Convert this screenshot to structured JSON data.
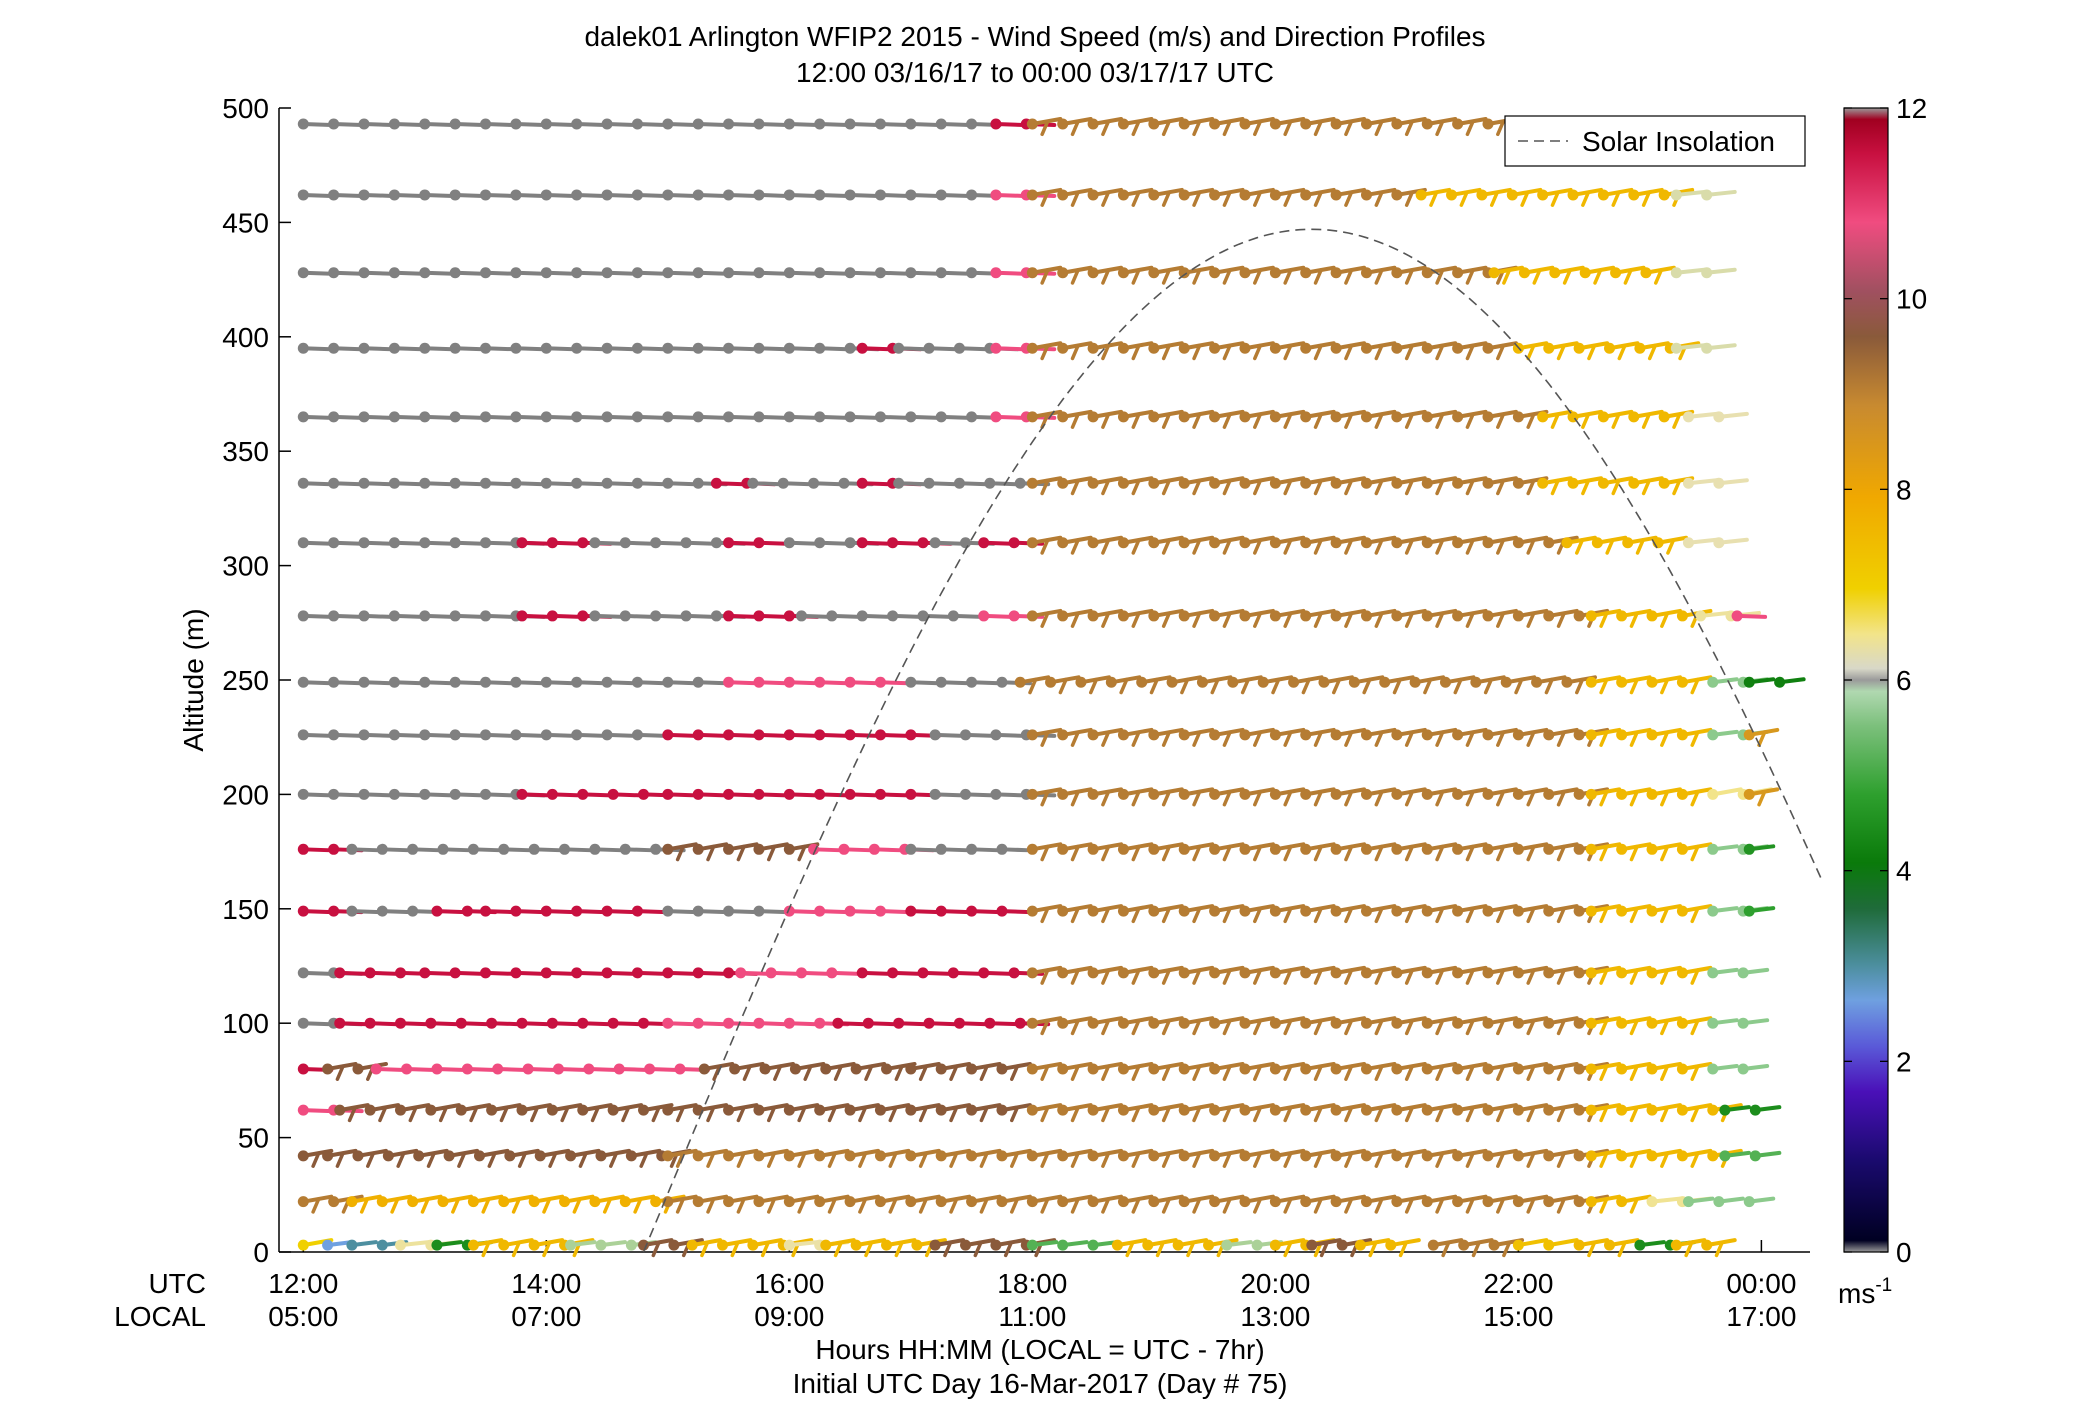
{
  "chart_data": {
    "type": "wind-barb-profile",
    "title": "dalek01 Arlington WFIP2 2015 - Wind Speed (m/s) and Direction Profiles",
    "subtitle": "12:00 03/16/17 to 00:00 03/17/17  UTC",
    "ylabel": "Altitude (m)",
    "ylim": [
      0,
      500
    ],
    "y_ticks": [
      "0",
      "50",
      "100",
      "150",
      "200",
      "250",
      "300",
      "350",
      "400",
      "450",
      "500"
    ],
    "x_range_hours": [
      11.8,
      24.4
    ],
    "x_ticks_utc": [
      "12:00",
      "14:00",
      "16:00",
      "18:00",
      "20:00",
      "22:00",
      "00:00"
    ],
    "x_ticks_local": [
      "05:00",
      "07:00",
      "09:00",
      "11:00",
      "13:00",
      "15:00",
      "17:00"
    ],
    "x_row_label_utc": "UTC",
    "x_row_label_local": "LOCAL",
    "xlabel": "Hours HH:MM  (LOCAL = UTC - 7hr)",
    "xlabel2": "Initial UTC Day 16-Mar-2017 (Day # 75)",
    "legend": {
      "label": "Solar Insolation",
      "placement": "top-right"
    },
    "colorbar": {
      "range": [
        0,
        12
      ],
      "ticks": [
        "0",
        "2",
        "4",
        "6",
        "8",
        "10",
        "12"
      ],
      "unit_label": "ms",
      "unit_exp": "-1"
    },
    "altitudes": [
      3,
      22,
      42,
      62,
      80,
      100,
      122,
      149,
      176,
      200,
      226,
      249,
      278,
      310,
      336,
      365,
      395,
      428,
      462,
      493
    ],
    "segments": [
      {
        "alt": 493,
        "spans": [
          [
            12.0,
            17.7,
            12.3
          ],
          [
            17.7,
            18.0,
            11.2
          ],
          [
            18.0,
            21.8,
            8.9
          ]
        ]
      },
      {
        "alt": 462,
        "spans": [
          [
            12.0,
            17.7,
            12.3
          ],
          [
            17.7,
            18.0,
            10.8
          ],
          [
            18.0,
            21.2,
            8.9
          ],
          [
            21.2,
            23.3,
            7.6
          ],
          [
            23.3,
            23.8,
            6.1
          ]
        ]
      },
      {
        "alt": 428,
        "spans": [
          [
            12.0,
            17.7,
            12.3
          ],
          [
            17.7,
            18.0,
            10.8
          ],
          [
            18.0,
            21.8,
            8.9
          ],
          [
            21.8,
            23.3,
            7.6
          ],
          [
            23.3,
            23.8,
            6.1
          ]
        ]
      },
      {
        "alt": 395,
        "spans": [
          [
            12.0,
            16.6,
            12.3
          ],
          [
            16.6,
            16.9,
            11.2
          ],
          [
            16.9,
            17.7,
            12.3
          ],
          [
            17.7,
            18.0,
            10.8
          ],
          [
            18.0,
            22.0,
            8.9
          ],
          [
            22.0,
            23.3,
            7.6
          ],
          [
            23.3,
            23.8,
            6.1
          ]
        ]
      },
      {
        "alt": 365,
        "spans": [
          [
            12.0,
            17.7,
            12.3
          ],
          [
            17.7,
            18.0,
            10.8
          ],
          [
            18.0,
            22.2,
            8.9
          ],
          [
            22.2,
            23.4,
            7.6
          ],
          [
            23.4,
            23.8,
            6.2
          ]
        ]
      },
      {
        "alt": 336,
        "spans": [
          [
            12.0,
            15.4,
            12.3
          ],
          [
            15.4,
            15.7,
            11.2
          ],
          [
            15.7,
            16.6,
            12.3
          ],
          [
            16.6,
            16.9,
            11.2
          ],
          [
            16.9,
            18.0,
            12.3
          ],
          [
            18.0,
            22.2,
            8.9
          ],
          [
            22.2,
            23.4,
            7.6
          ],
          [
            23.4,
            23.8,
            6.2
          ]
        ]
      },
      {
        "alt": 310,
        "spans": [
          [
            12.0,
            13.8,
            12.3
          ],
          [
            13.8,
            14.4,
            11.2
          ],
          [
            14.4,
            15.5,
            12.3
          ],
          [
            15.5,
            16.0,
            11.2
          ],
          [
            16.0,
            16.6,
            12.3
          ],
          [
            16.6,
            17.2,
            11.2
          ],
          [
            17.2,
            17.6,
            12.3
          ],
          [
            17.6,
            18.0,
            11.2
          ],
          [
            18.0,
            22.4,
            8.9
          ],
          [
            22.4,
            23.4,
            7.6
          ],
          [
            23.4,
            23.8,
            6.2
          ]
        ]
      },
      {
        "alt": 278,
        "spans": [
          [
            12.0,
            13.8,
            12.3
          ],
          [
            13.8,
            14.4,
            11.2
          ],
          [
            14.4,
            15.5,
            12.3
          ],
          [
            15.5,
            16.1,
            11.2
          ],
          [
            16.1,
            17.6,
            12.3
          ],
          [
            17.6,
            18.0,
            10.8
          ],
          [
            18.0,
            22.6,
            8.9
          ],
          [
            22.6,
            23.5,
            7.6
          ],
          [
            23.5,
            23.8,
            6.4
          ],
          [
            23.8,
            24.0,
            10.8
          ]
        ]
      },
      {
        "alt": 249,
        "spans": [
          [
            12.0,
            15.5,
            12.3
          ],
          [
            15.5,
            17.0,
            10.8
          ],
          [
            17.0,
            17.9,
            12.3
          ],
          [
            17.9,
            22.6,
            8.9
          ],
          [
            22.6,
            23.6,
            7.6
          ],
          [
            23.6,
            23.9,
            5.6
          ],
          [
            23.9,
            24.3,
            3.6
          ]
        ]
      },
      {
        "alt": 226,
        "spans": [
          [
            12.0,
            15.0,
            12.3
          ],
          [
            15.0,
            17.2,
            11.2
          ],
          [
            17.2,
            18.0,
            12.3
          ],
          [
            18.0,
            22.6,
            8.9
          ],
          [
            22.6,
            23.6,
            7.6
          ],
          [
            23.6,
            23.9,
            5.6
          ],
          [
            23.9,
            24.0,
            8.3
          ]
        ]
      },
      {
        "alt": 200,
        "spans": [
          [
            12.0,
            13.8,
            12.3
          ],
          [
            13.8,
            15.0,
            11.2
          ],
          [
            15.0,
            16.0,
            11.2
          ],
          [
            16.0,
            17.2,
            11.2
          ],
          [
            17.2,
            18.0,
            12.3
          ],
          [
            18.0,
            22.6,
            8.9
          ],
          [
            22.6,
            23.6,
            7.6
          ],
          [
            23.6,
            23.9,
            6.6
          ],
          [
            23.9,
            24.0,
            8.3
          ]
        ]
      },
      {
        "alt": 176,
        "spans": [
          [
            12.0,
            12.4,
            11.2
          ],
          [
            12.4,
            15.0,
            12.3
          ],
          [
            15.0,
            16.2,
            9.6
          ],
          [
            16.2,
            17.0,
            10.8
          ],
          [
            17.0,
            18.0,
            12.3
          ],
          [
            18.0,
            22.6,
            8.9
          ],
          [
            22.6,
            23.6,
            7.6
          ],
          [
            23.6,
            23.9,
            5.6
          ],
          [
            23.9,
            24.0,
            4.2
          ]
        ]
      },
      {
        "alt": 149,
        "spans": [
          [
            12.0,
            12.4,
            11.2
          ],
          [
            12.4,
            13.1,
            12.3
          ],
          [
            13.1,
            13.5,
            11.2
          ],
          [
            13.5,
            15.0,
            11.2
          ],
          [
            15.0,
            16.0,
            12.3
          ],
          [
            16.0,
            17.0,
            10.8
          ],
          [
            17.0,
            18.0,
            11.2
          ],
          [
            18.0,
            22.6,
            8.9
          ],
          [
            22.6,
            23.6,
            7.6
          ],
          [
            23.6,
            23.9,
            5.6
          ],
          [
            23.9,
            24.0,
            4.6
          ]
        ]
      },
      {
        "alt": 122,
        "spans": [
          [
            12.0,
            12.3,
            12.3
          ],
          [
            12.3,
            13.0,
            11.2
          ],
          [
            13.0,
            15.6,
            11.2
          ],
          [
            15.6,
            16.6,
            10.8
          ],
          [
            16.6,
            18.0,
            11.2
          ],
          [
            18.0,
            22.6,
            8.9
          ],
          [
            22.6,
            23.6,
            7.6
          ],
          [
            23.6,
            24.0,
            5.6
          ]
        ]
      },
      {
        "alt": 100,
        "spans": [
          [
            12.0,
            12.3,
            12.3
          ],
          [
            12.3,
            15.0,
            11.2
          ],
          [
            15.0,
            16.0,
            10.8
          ],
          [
            16.0,
            16.4,
            10.8
          ],
          [
            16.4,
            18.0,
            11.2
          ],
          [
            18.0,
            22.6,
            8.9
          ],
          [
            22.6,
            23.6,
            7.6
          ],
          [
            23.6,
            24.0,
            5.6
          ]
        ]
      },
      {
        "alt": 80,
        "spans": [
          [
            12.0,
            12.2,
            11.2
          ],
          [
            12.2,
            12.6,
            9.6
          ],
          [
            12.6,
            15.3,
            10.8
          ],
          [
            15.3,
            17.0,
            9.6
          ],
          [
            17.0,
            18.0,
            9.6
          ],
          [
            18.0,
            22.6,
            8.9
          ],
          [
            22.6,
            23.6,
            7.6
          ],
          [
            23.6,
            24.0,
            5.6
          ]
        ]
      },
      {
        "alt": 62,
        "spans": [
          [
            12.0,
            12.3,
            10.8
          ],
          [
            12.3,
            15.0,
            9.6
          ],
          [
            15.0,
            17.5,
            9.6
          ],
          [
            17.5,
            18.0,
            9.6
          ],
          [
            18.0,
            22.6,
            8.9
          ],
          [
            22.6,
            23.7,
            7.6
          ],
          [
            23.7,
            24.0,
            4.0
          ]
        ]
      },
      {
        "alt": 42,
        "spans": [
          [
            12.0,
            12.2,
            9.6
          ],
          [
            12.2,
            15.0,
            9.6
          ],
          [
            15.0,
            18.0,
            8.9
          ],
          [
            18.0,
            22.6,
            8.9
          ],
          [
            22.6,
            23.7,
            7.6
          ],
          [
            23.7,
            24.0,
            5.0
          ]
        ]
      },
      {
        "alt": 22,
        "spans": [
          [
            12.0,
            12.4,
            8.9
          ],
          [
            12.4,
            15.0,
            7.8
          ],
          [
            15.0,
            22.6,
            8.9
          ],
          [
            22.6,
            23.1,
            7.6
          ],
          [
            23.1,
            23.4,
            6.5
          ],
          [
            23.4,
            24.0,
            5.6
          ]
        ]
      },
      {
        "alt": 3,
        "spans": [
          [
            12.0,
            12.2,
            7.0
          ],
          [
            12.2,
            12.4,
            2.0
          ],
          [
            12.4,
            12.8,
            2.6
          ],
          [
            12.8,
            13.1,
            6.4
          ],
          [
            13.1,
            13.4,
            4.0
          ],
          [
            13.4,
            14.2,
            7.6
          ],
          [
            14.2,
            14.8,
            5.8
          ],
          [
            14.8,
            15.2,
            9.6
          ],
          [
            15.2,
            16.0,
            7.6
          ],
          [
            16.0,
            16.3,
            6.3
          ],
          [
            16.3,
            17.2,
            7.6
          ],
          [
            17.2,
            18.0,
            9.6
          ],
          [
            18.0,
            18.7,
            5.0
          ],
          [
            18.7,
            19.6,
            7.6
          ],
          [
            19.6,
            20.0,
            5.8
          ],
          [
            20.0,
            20.3,
            7.6
          ],
          [
            20.3,
            20.7,
            9.6
          ],
          [
            20.7,
            21.0,
            7.6
          ],
          [
            21.3,
            22.0,
            8.9
          ],
          [
            22.0,
            22.5,
            7.4
          ],
          [
            22.5,
            23.0,
            7.6
          ],
          [
            23.0,
            23.3,
            4.0
          ],
          [
            23.3,
            23.8,
            7.6
          ]
        ]
      }
    ],
    "solar_curve": {
      "peak_hour": 20.3,
      "peak_alt": 447,
      "start_hour": 14.8,
      "end_hour": 24.5,
      "end_alt": 154
    }
  },
  "colors": {
    "dash": "#555555",
    "axis": "#000000"
  }
}
